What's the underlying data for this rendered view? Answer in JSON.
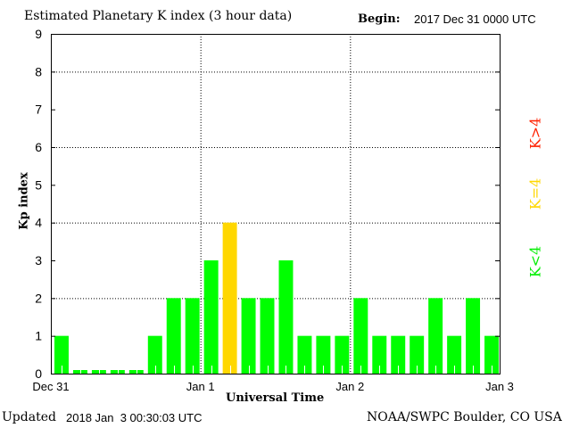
{
  "chart_data": {
    "type": "bar",
    "title": "Estimated Planetary K index (3 hour data)",
    "begin_label": "Begin:",
    "begin_value": "2017 Dec 31 0000 UTC",
    "xlabel": "Universal Time",
    "ylabel": "Kp index",
    "ylim": [
      0,
      9
    ],
    "yticks": [
      "0",
      "1",
      "2",
      "3",
      "4",
      "5",
      "6",
      "7",
      "8",
      "9"
    ],
    "xticks": [
      "Dec 31",
      "Jan 1",
      "Jan 2",
      "Jan 3"
    ],
    "grid": true,
    "values": [
      1,
      0,
      0,
      0,
      0,
      1,
      2,
      2,
      3,
      4,
      2,
      2,
      3,
      1,
      1,
      1,
      2,
      1,
      1,
      1,
      2,
      1,
      2,
      1
    ],
    "colors": {
      "below4": "#00ff00",
      "equal4": "#ffd700",
      "above4": "#ff2000"
    },
    "legend": {
      "below": "K<4",
      "equal": "K=4",
      "above": "K>4"
    }
  },
  "footer": {
    "updated_label": "Updated",
    "updated_value": "2018 Jan  3 00:30:03 UTC",
    "source": "NOAA/SWPC Boulder, CO USA"
  }
}
